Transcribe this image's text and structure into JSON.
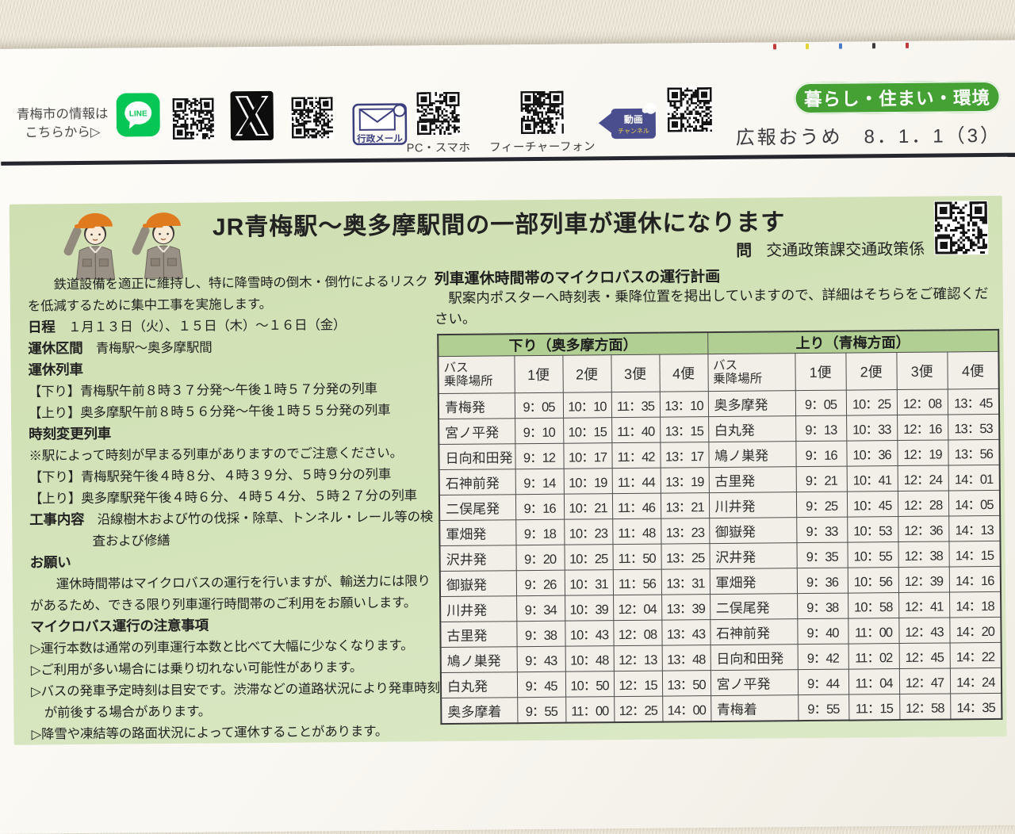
{
  "colors": {
    "badge_green": "#46a135",
    "panel_green": "#d5e4bb",
    "table_band_green": "#b1cf92",
    "line_green": "#06C755",
    "navy_icon": "#3c3f7e",
    "helmet_orange": "#e07a1f",
    "rule_dark": "#26262e"
  },
  "header": {
    "info_line1": "青梅市の情報は",
    "info_line2": "こちらから▷",
    "line_icon_text": "LINE",
    "gov_mail_label": "行政メール",
    "qr_caption_pc": "PC・スマホ",
    "qr_caption_feature": "フィーチャーフォン",
    "video_line1": "動画",
    "video_line2": "チャンネル",
    "category_badge": "暮らし・住まい・環境",
    "issue_info": "広報おうめ　8．1．1（3）"
  },
  "article": {
    "title": "JR青梅駅～奥多摩駅間の一部列車が運休になります",
    "contact_label": "問",
    "contact_value": "交通政策課交通政策係",
    "left_lines": [
      {
        "type": "p-indent",
        "text": "鉄道設備を適正に維持し、特に降雪時の倒木・倒竹によるリスクを低減するために集中工事を実施します。"
      },
      {
        "type": "kv",
        "label": "日程",
        "text": "１月１３日（火）、１５日（木）～１６日（金）"
      },
      {
        "type": "kv",
        "label": "運休区間",
        "text": "青梅駅～奥多摩駅間"
      },
      {
        "type": "h",
        "label": "運休列車"
      },
      {
        "type": "p",
        "text": "【下り】青梅駅午前８時３７分発～午後１時５７分発の列車"
      },
      {
        "type": "p",
        "text": "【上り】奥多摩駅午前８時５６分発～午後１時５５分発の列車"
      },
      {
        "type": "h",
        "label": "時刻変更列車"
      },
      {
        "type": "p",
        "text": "※駅によって時刻が早まる列車がありますのでご注意ください。"
      },
      {
        "type": "p",
        "text": "【下り】青梅駅発午後４時８分、４時３９分、５時９分の列車"
      },
      {
        "type": "p",
        "text": "【上り】奥多摩駅発午後４時６分、４時５４分、５時２７分の列車"
      },
      {
        "type": "kv-hang",
        "label": "工事内容",
        "text": "沿線樹木および竹の伐採・除草、トンネル・レール等の検査および修繕"
      },
      {
        "type": "h",
        "label": "お願い"
      },
      {
        "type": "p-indent",
        "text": "運休時間帯はマイクロバスの運行を行いますが、輸送力には限りがあるため、できる限り列車運行時間帯のご利用をお願いします。"
      },
      {
        "type": "h",
        "label": "マイクロバス運行の注意事項"
      },
      {
        "type": "p-hang",
        "text": "▷運行本数は通常の列車運行本数と比べて大幅に少なくなります。"
      },
      {
        "type": "p-hang",
        "text": "▷ご利用が多い場合には乗り切れない可能性があります。"
      },
      {
        "type": "p-hang",
        "text": "▷バスの発車予定時刻は目安です。渋滞などの道路状況により発車時刻が前後する場合があります。"
      },
      {
        "type": "p-hang",
        "text": "▷降雪や凍結等の路面状況によって運休することがあります。"
      }
    ],
    "bus_section": {
      "heading": "列車運休時間帯のマイクロバスの運行計画",
      "body": "駅案内ポスターへ時刻表・乗降位置を掲出していますので、詳細はそちらをご確認ください。"
    },
    "timetable": {
      "down_title": "下り（奥多摩方面）",
      "up_title": "上り（青梅方面）",
      "stop_header_l1": "バス",
      "stop_header_l2": "乗降場所",
      "service_cols": [
        "1便",
        "2便",
        "3便",
        "4便"
      ],
      "down": [
        [
          "青梅発",
          "9：05",
          "10：10",
          "11：35",
          "13：10"
        ],
        [
          "宮ノ平発",
          "9：10",
          "10：15",
          "11：40",
          "13：15"
        ],
        [
          "日向和田発",
          "9：12",
          "10：17",
          "11：42",
          "13：17"
        ],
        [
          "石神前発",
          "9：14",
          "10：19",
          "11：44",
          "13：19"
        ],
        [
          "二俣尾発",
          "9：16",
          "10：21",
          "11：46",
          "13：21"
        ],
        [
          "軍畑発",
          "9：18",
          "10：23",
          "11：48",
          "13：23"
        ],
        [
          "沢井発",
          "9：20",
          "10：25",
          "11：50",
          "13：25"
        ],
        [
          "御嶽発",
          "9：26",
          "10：31",
          "11：56",
          "13：31"
        ],
        [
          "川井発",
          "9：34",
          "10：39",
          "12：04",
          "13：39"
        ],
        [
          "古里発",
          "9：38",
          "10：43",
          "12：08",
          "13：43"
        ],
        [
          "鳩ノ巣発",
          "9：43",
          "10：48",
          "12：13",
          "13：48"
        ],
        [
          "白丸発",
          "9：45",
          "10：50",
          "12：15",
          "13：50"
        ],
        [
          "奥多摩着",
          "9：55",
          "11：00",
          "12：25",
          "14：00"
        ]
      ],
      "up": [
        [
          "奥多摩発",
          "9：05",
          "10：25",
          "12：08",
          "13：45"
        ],
        [
          "白丸発",
          "9：13",
          "10：33",
          "12：16",
          "13：53"
        ],
        [
          "鳩ノ巣発",
          "9：16",
          "10：36",
          "12：19",
          "13：56"
        ],
        [
          "古里発",
          "9：21",
          "10：41",
          "12：24",
          "14：01"
        ],
        [
          "川井発",
          "9：25",
          "10：45",
          "12：28",
          "14：05"
        ],
        [
          "御嶽発",
          "9：33",
          "10：53",
          "12：36",
          "14：13"
        ],
        [
          "沢井発",
          "9：35",
          "10：55",
          "12：38",
          "14：15"
        ],
        [
          "軍畑発",
          "9：36",
          "10：56",
          "12：39",
          "14：16"
        ],
        [
          "二俣尾発",
          "9：38",
          "10：58",
          "12：41",
          "14：18"
        ],
        [
          "石神前発",
          "9：40",
          "11：00",
          "12：43",
          "14：20"
        ],
        [
          "日向和田発",
          "9：42",
          "11：02",
          "12：45",
          "14：22"
        ],
        [
          "宮ノ平発",
          "9：44",
          "11：04",
          "12：47",
          "14：24"
        ],
        [
          "青梅着",
          "9：55",
          "11：15",
          "12：58",
          "14：35"
        ]
      ]
    }
  }
}
